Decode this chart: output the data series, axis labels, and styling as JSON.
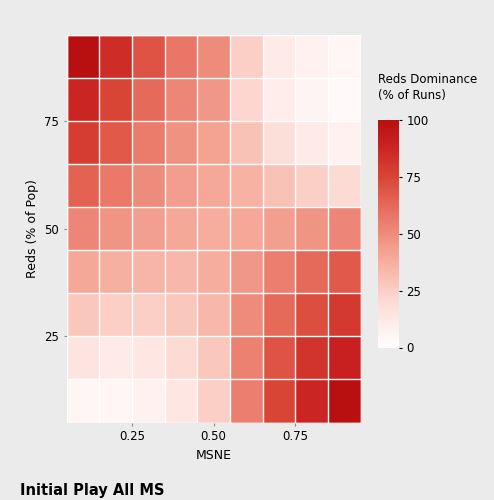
{
  "title": "Initial Play All MS",
  "xlabel": "MSNE",
  "ylabel": "Reds (% of Pop)",
  "legend_title": "Reds Dominance\n(% of Runs)",
  "x_tick_labels": [
    "0.25",
    "0.50",
    "0.75"
  ],
  "x_tick_positions": [
    0.25,
    0.5,
    0.75
  ],
  "y_tick_labels": [
    "25",
    "50",
    "75"
  ],
  "y_tick_positions": [
    25,
    50,
    75
  ],
  "colorbar_ticks": [
    0,
    25,
    50,
    75,
    100
  ],
  "vmin": 0,
  "vmax": 100,
  "panel_bg": "#EBEBEB",
  "fig_bg": "#EBEBEB",
  "data": [
    [
      100,
      85,
      70,
      58,
      50,
      25,
      12,
      8,
      5
    ],
    [
      88,
      75,
      62,
      52,
      46,
      22,
      10,
      6,
      3
    ],
    [
      78,
      68,
      56,
      48,
      42,
      30,
      18,
      12,
      8
    ],
    [
      65,
      57,
      50,
      44,
      40,
      36,
      30,
      25,
      20
    ],
    [
      52,
      47,
      43,
      40,
      38,
      40,
      43,
      47,
      52
    ],
    [
      40,
      37,
      35,
      34,
      38,
      46,
      55,
      62,
      68
    ],
    [
      28,
      25,
      25,
      28,
      34,
      50,
      62,
      72,
      80
    ],
    [
      15,
      12,
      14,
      20,
      28,
      54,
      70,
      82,
      90
    ],
    [
      5,
      5,
      8,
      14,
      25,
      55,
      75,
      88,
      100
    ]
  ],
  "title_fontsize": 10.5,
  "axis_label_fontsize": 9,
  "tick_fontsize": 8.5,
  "legend_title_fontsize": 8.5,
  "legend_tick_fontsize": 8.5
}
